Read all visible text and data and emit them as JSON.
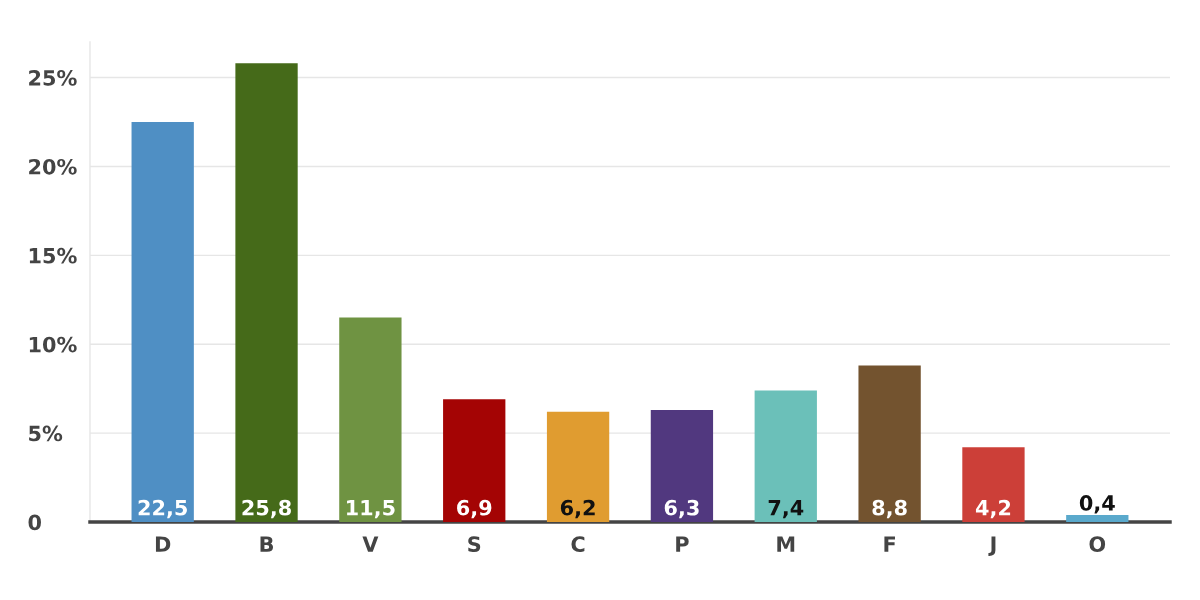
{
  "chart_data": {
    "type": "bar",
    "categories": [
      "D",
      "B",
      "V",
      "S",
      "C",
      "P",
      "M",
      "F",
      "J",
      "O"
    ],
    "values": [
      22.5,
      25.8,
      11.5,
      6.9,
      6.2,
      6.3,
      7.4,
      8.8,
      4.2,
      0.4
    ],
    "value_labels": [
      "22,5",
      "25,8",
      "11,5",
      "6,9",
      "6,2",
      "6,3",
      "7,4",
      "8,8",
      "4,2",
      "0,4"
    ],
    "colors": [
      "#4f8fc4",
      "#456a19",
      "#6f9342",
      "#a40404",
      "#e09c30",
      "#51387f",
      "#6bc0b9",
      "#73532f",
      "#cc3f38",
      "#5aa9cc"
    ],
    "ylim": [
      0,
      27
    ],
    "yticks": [
      0,
      {
        "value": 5,
        "label": "5%"
      },
      {
        "value": 10,
        "label": "10%"
      },
      {
        "value": 15,
        "label": "15%"
      },
      {
        "value": 20,
        "label": "20%"
      },
      {
        "value": 25,
        "label": "25%"
      }
    ],
    "grid": "y"
  }
}
